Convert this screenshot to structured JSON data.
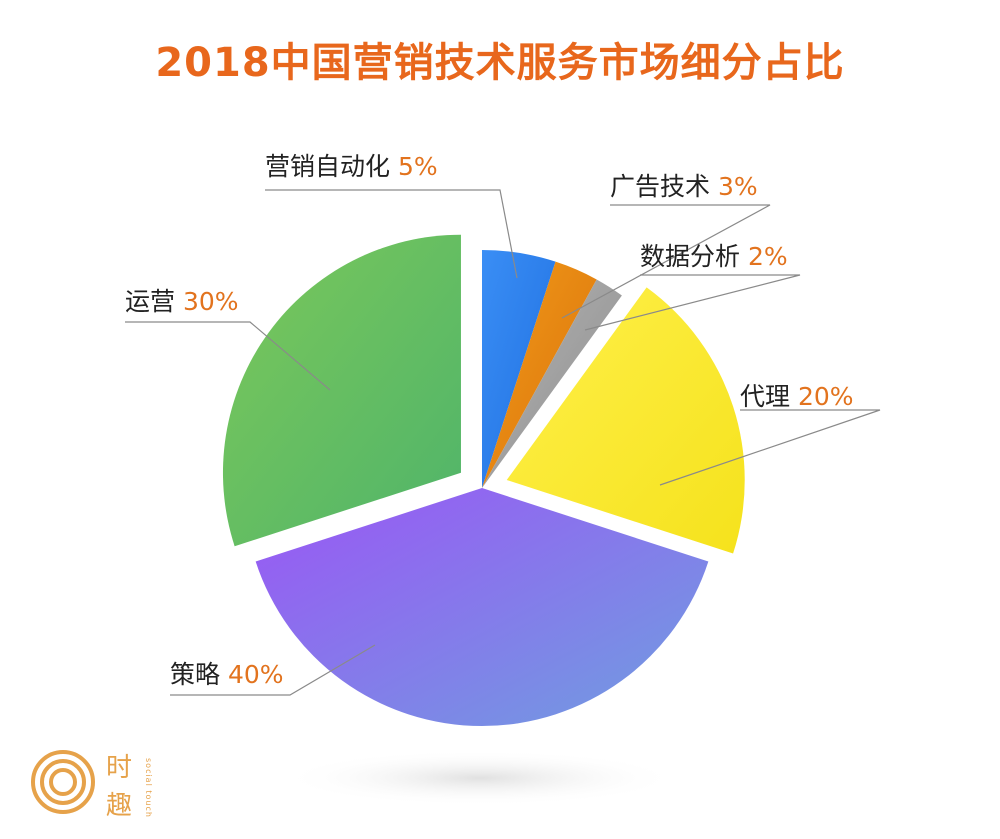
{
  "chart_data": {
    "type": "pie",
    "title": "2018中国营销技术服务市场细分占比",
    "slices": [
      {
        "label": "营销自动化",
        "value": 5,
        "value_label": "5%",
        "color": "#2f86f0",
        "exploded": false
      },
      {
        "label": "广告技术",
        "value": 3,
        "value_label": "3%",
        "color": "#e8820c",
        "exploded": false
      },
      {
        "label": "数据分析",
        "value": 2,
        "value_label": "2%",
        "color": "#9a9a9a",
        "exploded": false
      },
      {
        "label": "代理",
        "value": 20,
        "value_label": "20%",
        "color": "#f7e832",
        "exploded": true
      },
      {
        "label": "策略",
        "value": 40,
        "value_label": "40%",
        "color": "#8a70e8",
        "exploded": false
      },
      {
        "label": "运营",
        "value": 30,
        "value_label": "30%",
        "color": "#6cc05a",
        "exploded": true
      }
    ],
    "legend": "none"
  },
  "logo": {
    "char1": "时",
    "char2": "趣",
    "small_text": "social touch"
  }
}
